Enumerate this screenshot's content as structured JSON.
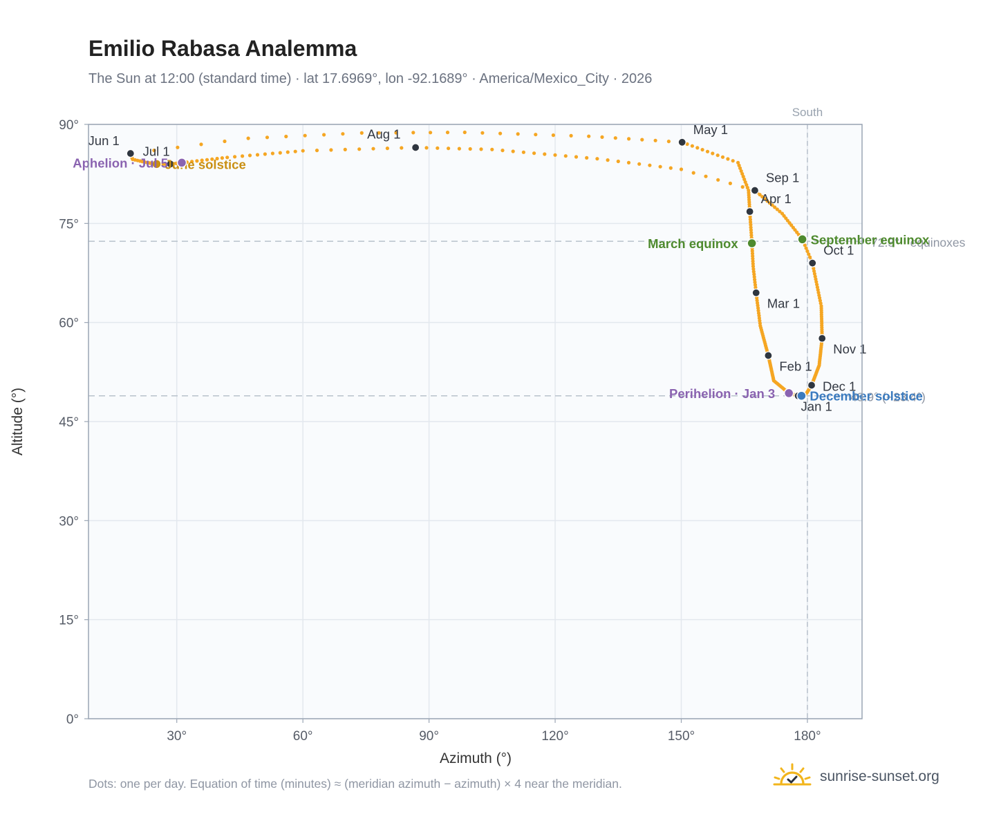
{
  "title": "Emilio Rabasa Analemma",
  "subtitle": "The Sun at 12:00 (standard time) · lat 17.6969°, lon -92.1689° · America/Mexico_City · 2026",
  "footnote": "Dots: one per day. Equation of time (minutes) ≈ (meridian azimuth − azimuth) × 4 near the meridian.",
  "brand": {
    "name": "sunrise-sunset.org",
    "icon": "sun-check-icon"
  },
  "colors": {
    "track": "#f5a623",
    "month_marker": "#2f3640",
    "equinox": "#4e8a2e",
    "solstice_june": "#c98f12",
    "solstice_december": "#3b7bbf",
    "apsis": "#8a63b0",
    "reference_line": "#b8c2cc",
    "plot_background": "#f9fbfd",
    "grid": "#e3e8ee",
    "frame": "#9aa5b4"
  },
  "chart_data": {
    "type": "scatter",
    "title": "Emilio Rabasa Analemma",
    "xlabel": "Azimuth (°)",
    "ylabel": "Altitude (°)",
    "xlim": [
      9,
      193
    ],
    "ylim": [
      0,
      90
    ],
    "x_ticks": [
      {
        "value": 30,
        "label": "30°"
      },
      {
        "value": 60,
        "label": "60°"
      },
      {
        "value": 90,
        "label": "90°"
      },
      {
        "value": 120,
        "label": "120°"
      },
      {
        "value": 150,
        "label": "150°"
      },
      {
        "value": 180,
        "label": "180°"
      }
    ],
    "y_ticks": [
      {
        "value": 0,
        "label": "0°"
      },
      {
        "value": 15,
        "label": "15°"
      },
      {
        "value": 30,
        "label": "30°"
      },
      {
        "value": 45,
        "label": "45°"
      },
      {
        "value": 60,
        "label": "60°"
      },
      {
        "value": 75,
        "label": "75°"
      },
      {
        "value": 90,
        "label": "90°"
      }
    ],
    "grid": true,
    "meridian": {
      "azimuth": 180,
      "label": "South"
    },
    "reference_lines": [
      {
        "altitude": 72.3,
        "label": "72.3° · equinoxes"
      },
      {
        "altitude": 48.9,
        "label": "48.9° (−23.4°)"
      }
    ],
    "track_keyframes": [
      {
        "doy": 1,
        "az": 177.8,
        "alt": 48.9
      },
      {
        "doy": 3,
        "az": 175.6,
        "alt": 49.3
      },
      {
        "doy": 15,
        "az": 172.0,
        "alt": 51.2
      },
      {
        "doy": 32,
        "az": 170.7,
        "alt": 55.0
      },
      {
        "doy": 47,
        "az": 168.8,
        "alt": 59.5
      },
      {
        "doy": 60,
        "az": 167.8,
        "alt": 64.5
      },
      {
        "doy": 70,
        "az": 167.1,
        "alt": 68.5
      },
      {
        "doy": 79,
        "az": 166.8,
        "alt": 72.0
      },
      {
        "doy": 91,
        "az": 166.3,
        "alt": 76.8
      },
      {
        "doy": 100,
        "az": 166.0,
        "alt": 80.0
      },
      {
        "doy": 110,
        "az": 163.5,
        "alt": 84.2
      },
      {
        "doy": 121,
        "az": 150.2,
        "alt": 87.3
      },
      {
        "doy": 128,
        "az": 128.0,
        "alt": 88.2
      },
      {
        "doy": 135,
        "az": 98.5,
        "alt": 88.8
      },
      {
        "doy": 141,
        "az": 74.0,
        "alt": 88.7
      },
      {
        "doy": 147,
        "az": 47.0,
        "alt": 87.9
      },
      {
        "doy": 152,
        "az": 19.0,
        "alt": 85.6
      },
      {
        "doy": 157,
        "az": 19.5,
        "alt": 84.7
      },
      {
        "doy": 163,
        "az": 23.0,
        "alt": 84.2
      },
      {
        "doy": 172,
        "az": 25.2,
        "alt": 84.0
      },
      {
        "doy": 182,
        "az": 28.5,
        "alt": 84.0
      },
      {
        "doy": 186,
        "az": 31.2,
        "alt": 84.2
      },
      {
        "doy": 195,
        "az": 42.0,
        "alt": 85.0
      },
      {
        "doy": 205,
        "az": 60.0,
        "alt": 86.0
      },
      {
        "doy": 213,
        "az": 86.8,
        "alt": 86.5
      },
      {
        "doy": 220,
        "az": 105.0,
        "alt": 86.2
      },
      {
        "doy": 230,
        "az": 130.0,
        "alt": 84.8
      },
      {
        "doy": 238,
        "az": 150.0,
        "alt": 83.2
      },
      {
        "doy": 244,
        "az": 167.5,
        "alt": 80.0
      },
      {
        "doy": 255,
        "az": 174.0,
        "alt": 76.5
      },
      {
        "doy": 266,
        "az": 178.8,
        "alt": 72.6
      },
      {
        "doy": 274,
        "az": 181.2,
        "alt": 69.0
      },
      {
        "doy": 290,
        "az": 183.3,
        "alt": 62.5
      },
      {
        "doy": 305,
        "az": 183.5,
        "alt": 57.6
      },
      {
        "doy": 320,
        "az": 182.8,
        "alt": 53.5
      },
      {
        "doy": 335,
        "az": 181.0,
        "alt": 50.5
      },
      {
        "doy": 345,
        "az": 179.8,
        "alt": 49.3
      },
      {
        "doy": 355,
        "az": 178.6,
        "alt": 48.9
      },
      {
        "doy": 366,
        "az": 177.8,
        "alt": 48.9
      }
    ],
    "month_markers": [
      {
        "label": "Jan 1",
        "az": 177.8,
        "alt": 48.9
      },
      {
        "label": "Feb 1",
        "az": 170.7,
        "alt": 55.0
      },
      {
        "label": "Mar 1",
        "az": 167.8,
        "alt": 64.5
      },
      {
        "label": "Apr 1",
        "az": 166.3,
        "alt": 76.8
      },
      {
        "label": "May 1",
        "az": 150.2,
        "alt": 87.3
      },
      {
        "label": "Jun 1",
        "az": 19.0,
        "alt": 85.6
      },
      {
        "label": "Jul 1",
        "az": 28.5,
        "alt": 84.0
      },
      {
        "label": "Aug 1",
        "az": 86.8,
        "alt": 86.5
      },
      {
        "label": "Sep 1",
        "az": 167.5,
        "alt": 80.0
      },
      {
        "label": "Oct 1",
        "az": 181.2,
        "alt": 69.0
      },
      {
        "label": "Nov 1",
        "az": 183.5,
        "alt": 57.6
      },
      {
        "label": "Dec 1",
        "az": 181.0,
        "alt": 50.5
      }
    ],
    "events": [
      {
        "label": "March equinox",
        "az": 166.8,
        "alt": 72.0,
        "kind": "equinox",
        "anchor": "end"
      },
      {
        "label": "September equinox",
        "az": 178.8,
        "alt": 72.6,
        "kind": "equinox",
        "anchor": "start"
      },
      {
        "label": "June solstice",
        "az": 25.2,
        "alt": 84.0,
        "kind": "solstice_june",
        "anchor": "start"
      },
      {
        "label": "December solstice",
        "az": 178.6,
        "alt": 48.9,
        "kind": "solstice_december",
        "anchor": "start"
      },
      {
        "label": "Perihelion · Jan 3",
        "az": 175.6,
        "alt": 49.3,
        "kind": "apsis",
        "anchor": "end"
      },
      {
        "label": "Aphelion · Jul 5",
        "az": 31.2,
        "alt": 84.2,
        "kind": "apsis",
        "anchor": "end"
      }
    ]
  }
}
